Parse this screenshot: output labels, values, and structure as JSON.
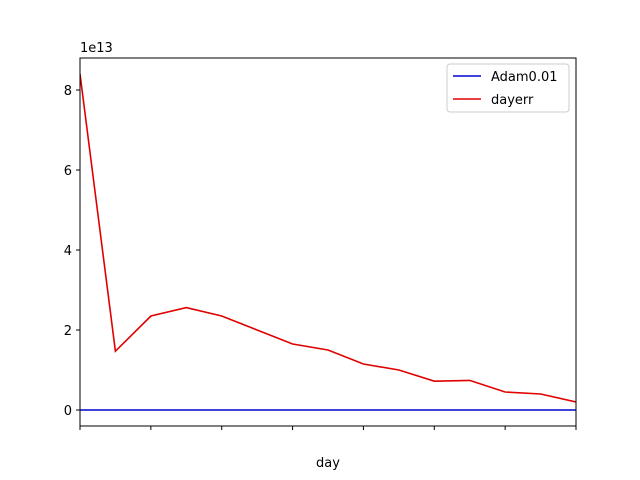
{
  "chart_data": {
    "type": "line",
    "title": "",
    "xlabel": "day",
    "ylabel": "",
    "y_offset_label": "1e13",
    "y_scale": 10000000000000.0,
    "x": [
      0,
      1,
      2,
      3,
      4,
      5,
      6,
      7,
      8,
      9,
      10,
      11,
      12,
      13,
      14
    ],
    "xlim": [
      0,
      14
    ],
    "ylim": [
      -0.4,
      8.8
    ],
    "y_ticks": [
      0,
      2,
      4,
      6,
      8
    ],
    "y_tick_labels": [
      "0",
      "2",
      "4",
      "6",
      "8"
    ],
    "x_tick_labels_shown": false,
    "grid": false,
    "legend_position": "top-right",
    "series": [
      {
        "name": "Adam0.01",
        "color": "#0000cd",
        "values": [
          0,
          0,
          0,
          0,
          0,
          0,
          0,
          0,
          0,
          0,
          0,
          0,
          0,
          0,
          0
        ]
      },
      {
        "name": "dayerr",
        "color": "#e00000",
        "values": [
          8.4,
          1.47,
          2.35,
          2.56,
          2.35,
          2.0,
          1.65,
          1.5,
          1.15,
          1.0,
          0.72,
          0.74,
          0.45,
          0.4,
          0.2
        ]
      }
    ]
  }
}
